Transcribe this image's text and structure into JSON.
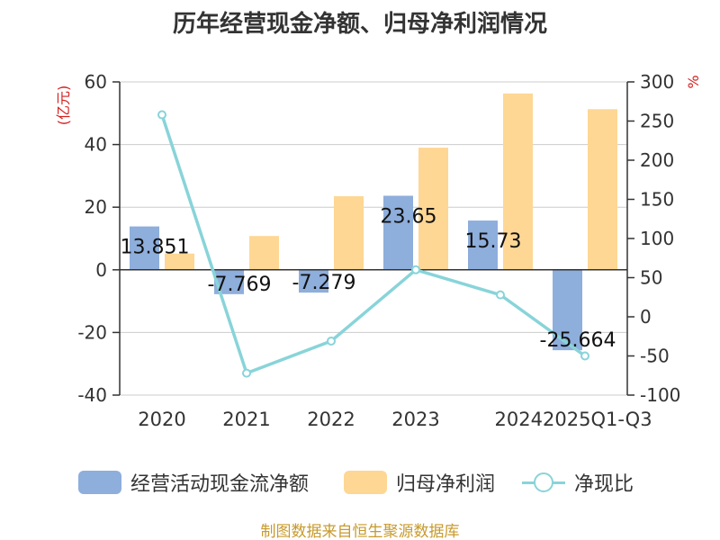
{
  "chart_data": {
    "type": "bar",
    "title": "历年经营现金净额、归母净利润情况",
    "categories": [
      "2020",
      "2021",
      "2022",
      "2023",
      "2024",
      "2025Q1-Q3"
    ],
    "left_axis": {
      "label": "(亿元)",
      "ylim": [
        -40,
        60
      ],
      "ticks": [
        "60",
        "40",
        "20",
        "0",
        "-20",
        "-40"
      ]
    },
    "right_axis": {
      "label": "%",
      "ylim": [
        -100,
        300
      ],
      "ticks": [
        "300",
        "250",
        "200",
        "150",
        "100",
        "50",
        "0",
        "-50",
        "-100"
      ]
    },
    "series": [
      {
        "name": "经营活动现金流净额",
        "type": "bar",
        "axis": "left",
        "color": "#8eaedc",
        "values": [
          13.851,
          -7.769,
          -7.279,
          23.65,
          15.73,
          -25.664
        ],
        "labels": [
          "13.851",
          "-7.769",
          "-7.279",
          "23.65",
          "15.73",
          "-25.664"
        ]
      },
      {
        "name": "归母净利润",
        "type": "bar",
        "axis": "left",
        "color": "#fed794",
        "values": [
          5.2,
          10.8,
          23.5,
          39,
          56.3,
          51.3
        ]
      },
      {
        "name": "净现比",
        "type": "line",
        "axis": "right",
        "color": "#88d4d9",
        "values": [
          258,
          -72,
          -31,
          60,
          28,
          -50
        ]
      }
    ],
    "grid": true,
    "legend_position": "bottom-center"
  },
  "source": "制图数据来自恒生聚源数据库"
}
